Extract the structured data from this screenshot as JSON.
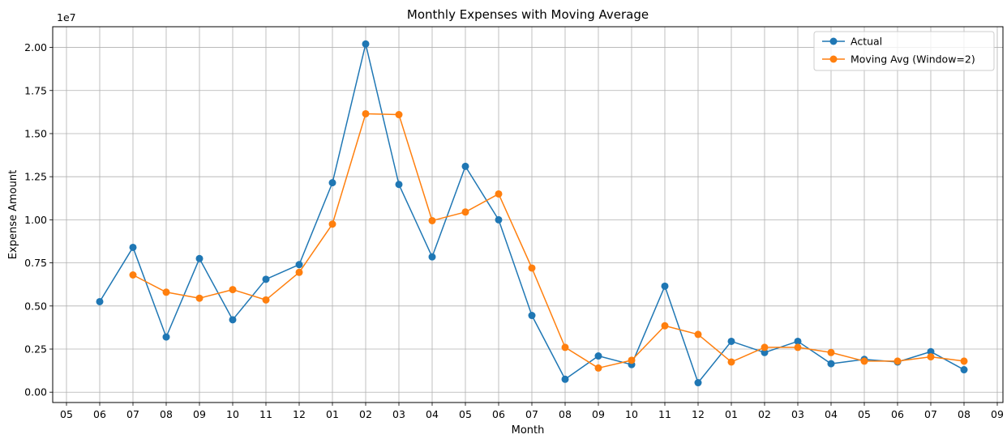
{
  "chart_data": {
    "type": "line",
    "title": "Monthly Expenses with Moving Average",
    "xlabel": "Month",
    "ylabel": "Expense Amount",
    "y_offset_label": "1e7",
    "grid": true,
    "legend_position": "top-right",
    "x_ticks": [
      "05",
      "06",
      "07",
      "08",
      "09",
      "10",
      "11",
      "12",
      "01",
      "02",
      "03",
      "04",
      "05",
      "06",
      "07",
      "08",
      "09",
      "10",
      "11",
      "12",
      "01",
      "02",
      "03",
      "04",
      "05",
      "06",
      "07",
      "08",
      "09"
    ],
    "y_ticks": [
      "0.00",
      "0.25",
      "0.50",
      "0.75",
      "1.00",
      "1.25",
      "1.50",
      "1.75",
      "2.00"
    ],
    "ylim": [
      -600000.0,
      21200000.0
    ],
    "series": [
      {
        "name": "Actual",
        "color": "#1f77b4",
        "x_index": [
          1,
          2,
          3,
          4,
          5,
          6,
          7,
          8,
          9,
          10,
          11,
          12,
          13,
          14,
          15,
          16,
          17,
          18,
          19,
          20,
          21,
          22,
          23,
          24,
          25,
          26,
          27
        ],
        "values": [
          5250000.0,
          8400000.0,
          3200000.0,
          7750000.0,
          4200000.0,
          6550000.0,
          7400000.0,
          12150000.0,
          20200000.0,
          12050000.0,
          7850000.0,
          13100000.0,
          10000000.0,
          4450000.0,
          750000.0,
          2100000.0,
          1600000.0,
          6150000.0,
          550000.0,
          2950000.0,
          2300000.0,
          2950000.0,
          1650000.0,
          1900000.0,
          1750000.0,
          2350000.0,
          1300000.0
        ]
      },
      {
        "name": "Moving Avg (Window=2)",
        "color": "#ff7f0e",
        "x_index": [
          2,
          3,
          4,
          5,
          6,
          7,
          8,
          9,
          10,
          11,
          12,
          13,
          14,
          15,
          16,
          17,
          18,
          19,
          20,
          21,
          22,
          23,
          24,
          25,
          26,
          27
        ],
        "values": [
          6800000.0,
          5800000.0,
          5450000.0,
          5950000.0,
          5350000.0,
          6950000.0,
          9750000.0,
          16150000.0,
          16100000.0,
          9950000.0,
          10450000.0,
          11500000.0,
          7200000.0,
          2600000.0,
          1400000.0,
          1850000.0,
          3850000.0,
          3350000.0,
          1750000.0,
          2600000.0,
          2600000.0,
          2300000.0,
          1800000.0,
          1800000.0,
          2050000.0,
          1800000.0
        ]
      }
    ]
  }
}
